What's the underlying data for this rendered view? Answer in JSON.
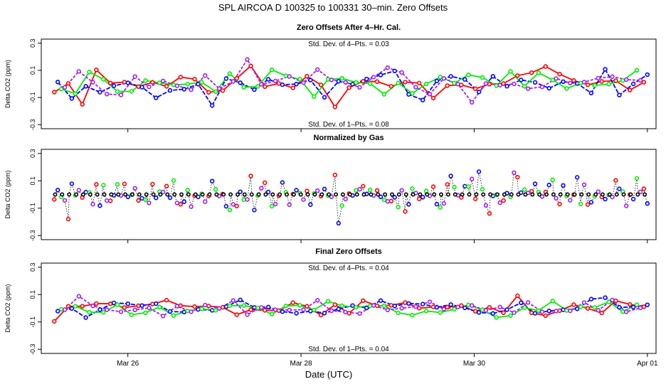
{
  "main_title": "SPL    AIRCOA D    100325 to 100331    30–min. Zero Offsets",
  "xlabel": "Date (UTC)",
  "x_ticks": [
    {
      "label": "Mar 26",
      "day": 26
    },
    {
      "label": "Mar 28",
      "day": 28
    },
    {
      "label": "Mar 30",
      "day": 30
    },
    {
      "label": "Apr 01",
      "day": 32
    }
  ],
  "colors": {
    "red": "#ff0000",
    "blue": "#0000ff",
    "green": "#00ee00",
    "purple": "#a020f0",
    "black": "#000000",
    "axis": "#000000"
  },
  "chart_data": [
    {
      "type": "scatter",
      "title": "Zero Offsets After 4–Hr. Cal.",
      "ylabel": "Delta CO2 (ppm)",
      "ylim": [
        -0.33,
        0.33
      ],
      "xlim": [
        25.0,
        32.1
      ],
      "y_ticks": [
        "-0.3",
        "-0.1",
        "0.1",
        "0.3"
      ],
      "y_tick_values": [
        -0.3,
        -0.1,
        0.1,
        0.3
      ],
      "annotation_top": "Std. Dev. of 4–Pts. =  0.03",
      "annotation_bottom": "Std. Dev. of 1–Pts. =  0.08",
      "style": "connected",
      "amplitude": 0.06,
      "seed": 11,
      "black_at_zero": false,
      "series_names": [
        "red",
        "blue",
        "green",
        "purple"
      ]
    },
    {
      "type": "scatter",
      "title": "Normalized by Gas",
      "ylabel": "Delta CO2 (ppm)",
      "ylim": [
        -0.33,
        0.33
      ],
      "xlim": [
        25.0,
        32.1
      ],
      "y_ticks": [
        "-0.3",
        "-0.1",
        "0.1",
        "0.3"
      ],
      "y_tick_values": [
        -0.3,
        -0.1,
        0.1,
        0.3
      ],
      "annotation_top": "",
      "annotation_bottom": "",
      "style": "points_dotted",
      "amplitude": 0.07,
      "seed": 23,
      "black_at_zero": true,
      "series_names": [
        "red",
        "blue",
        "green",
        "purple",
        "black"
      ]
    },
    {
      "type": "scatter",
      "title": "Final Zero Offsets",
      "ylabel": "Delta CO2 (ppm)",
      "ylim": [
        -0.33,
        0.33
      ],
      "xlim": [
        25.0,
        32.1
      ],
      "y_ticks": [
        "-0.3",
        "-0.1",
        "0.1",
        "0.3"
      ],
      "y_tick_values": [
        -0.3,
        -0.1,
        0.1,
        0.3
      ],
      "annotation_top": "Std. Dev. of 4–Pts. =  0.04",
      "annotation_bottom": "Std. Dev. of 1–Pts. =  0.04",
      "style": "connected",
      "amplitude": 0.035,
      "seed": 37,
      "black_at_zero": false,
      "series_names": [
        "red",
        "blue",
        "green",
        "purple"
      ]
    }
  ]
}
